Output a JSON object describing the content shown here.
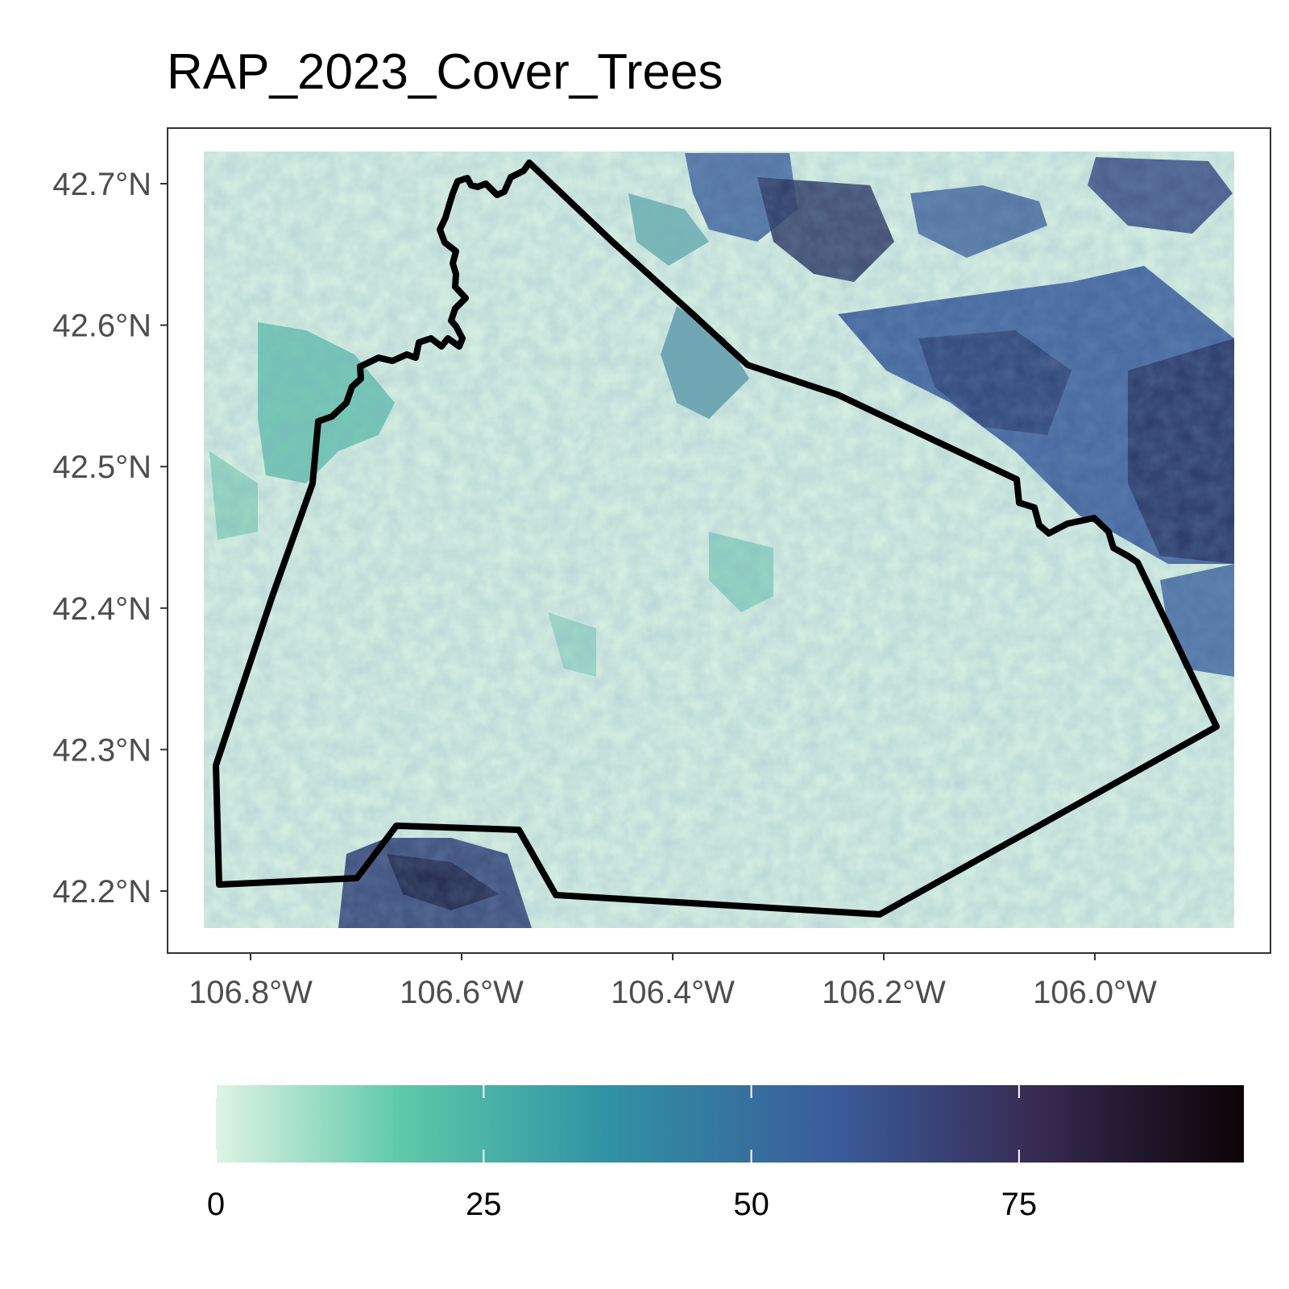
{
  "title": "RAP_2023_Cover_Trees",
  "map": {
    "x_axis": {
      "ticks": [
        -106.8,
        -106.6,
        -106.4,
        -106.2,
        -106.0
      ],
      "tick_labels": [
        "106.8°W",
        "106.6°W",
        "106.4°W",
        "106.2°W",
        "106.0°W"
      ]
    },
    "y_axis": {
      "ticks": [
        42.7,
        42.6,
        42.5,
        42.4,
        42.3,
        42.2
      ],
      "tick_labels": [
        "42.7°N",
        "42.6°N",
        "42.5°N",
        "42.4°N",
        "42.3°N",
        "42.2°N"
      ]
    },
    "boundary_color": "#000000"
  },
  "legend": {
    "min": 0,
    "max": 96,
    "breaks": [
      0,
      25,
      50,
      75
    ],
    "labels": [
      "0",
      "25",
      "50",
      "75"
    ],
    "colors": [
      "#dff3e4",
      "#5ec9a9",
      "#3092a4",
      "#3a5c9b",
      "#372a52",
      "#0b0405"
    ]
  }
}
